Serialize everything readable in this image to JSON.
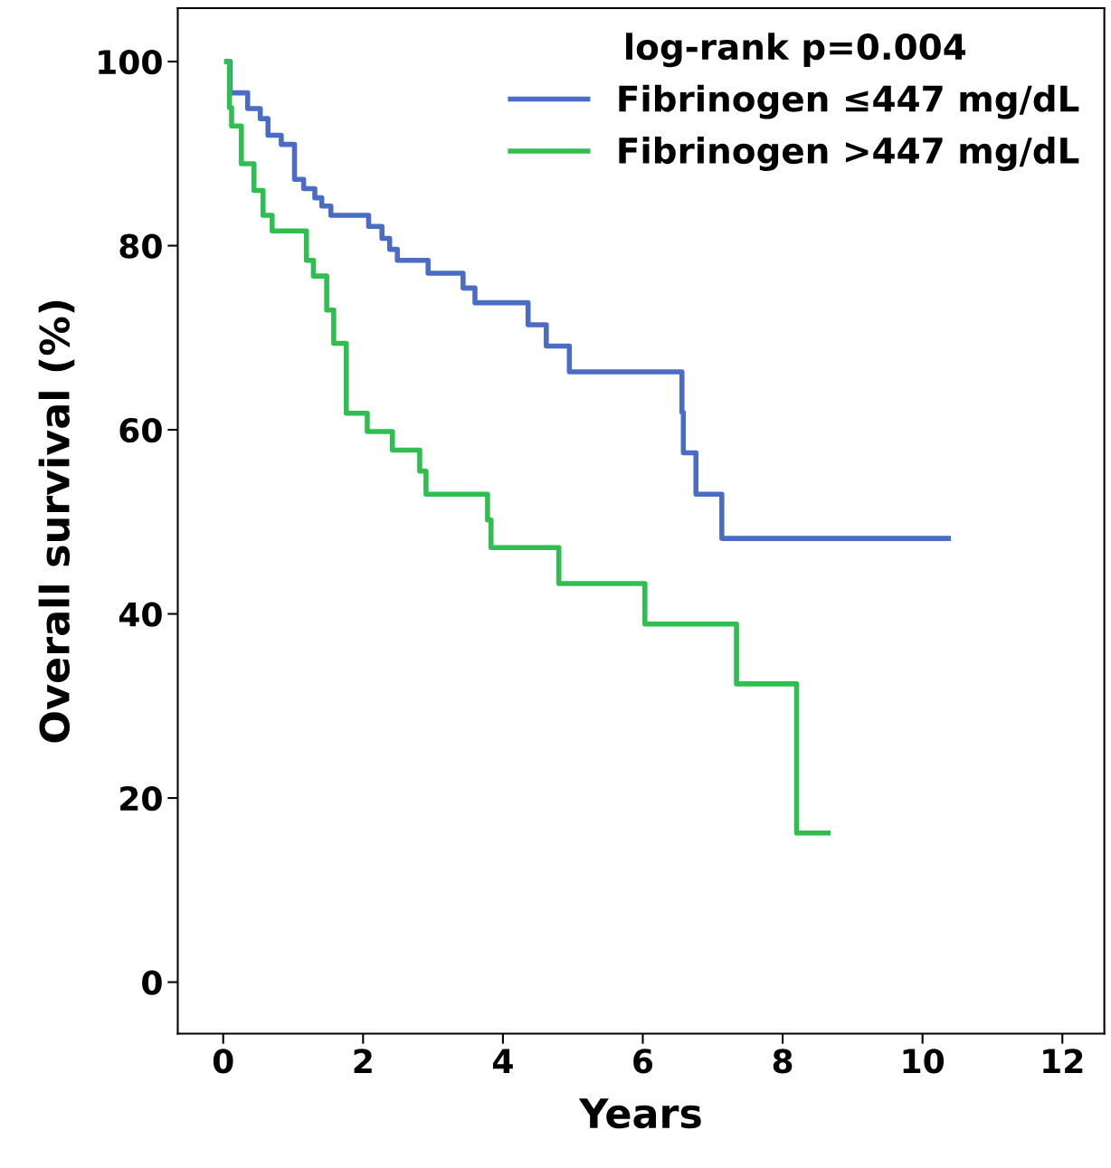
{
  "chart_data": {
    "type": "step",
    "xlabel": "Years",
    "ylabel": "Overall survival (%)",
    "legend_title": "log-rank p=0.004",
    "xlim": [
      -0.65,
      12.6
    ],
    "ylim": [
      -5.6,
      105.8
    ],
    "xticks": [
      0,
      2,
      4,
      6,
      8,
      10,
      12
    ],
    "yticks": [
      0,
      20,
      40,
      60,
      80,
      100
    ],
    "grid": false,
    "legend": "top right",
    "marker": "none",
    "line_style": "solid",
    "series": [
      {
        "name": "Fibrinogen ≤447 mg/dL",
        "color": "#4a6cc4",
        "x": [
          0.05,
          0.1,
          0.35,
          0.53,
          0.64,
          0.83,
          1.02,
          1.15,
          1.31,
          1.41,
          1.54,
          2.08,
          2.27,
          2.38,
          2.49,
          2.93,
          3.43,
          3.6,
          4.36,
          4.62,
          4.95,
          6.56,
          6.58,
          6.76,
          7.13,
          10.37
        ],
        "values": [
          100,
          96.6,
          94.9,
          93.8,
          92.0,
          91.0,
          87.2,
          86.2,
          85.2,
          84.3,
          83.3,
          82.1,
          80.8,
          79.6,
          78.4,
          77.0,
          75.4,
          73.8,
          71.4,
          69.1,
          66.3,
          61.9,
          57.5,
          53.0,
          48.2,
          48.2
        ]
      },
      {
        "name": "Fibrinogen >447 mg/dL",
        "color": "#2fbf50",
        "x": [
          0.05,
          0.09,
          0.12,
          0.26,
          0.44,
          0.57,
          0.7,
          1.19,
          1.29,
          1.48,
          1.58,
          1.76,
          2.06,
          2.42,
          2.81,
          2.9,
          3.78,
          3.83,
          4.8,
          6.03,
          7.34,
          8.2,
          8.65
        ],
        "values": [
          100,
          95.0,
          93.0,
          88.9,
          86.0,
          83.3,
          81.6,
          78.4,
          76.7,
          73.0,
          69.4,
          61.8,
          59.8,
          57.8,
          55.5,
          53.0,
          50.2,
          47.2,
          43.3,
          38.9,
          32.4,
          16.2,
          16.2
        ]
      }
    ]
  }
}
